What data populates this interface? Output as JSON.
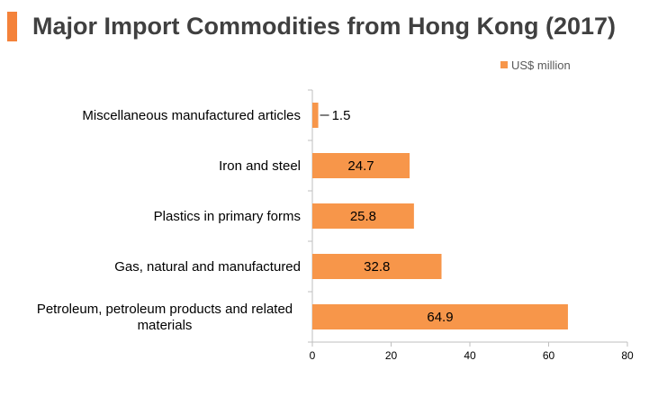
{
  "chart_data": {
    "type": "bar",
    "orientation": "horizontal",
    "title": "Major Import Commodities from Hong Kong (2017)",
    "categories": [
      "Miscellaneous manufactured articles",
      "Iron and steel",
      "Plastics in primary forms",
      "Gas, natural and manufactured",
      "Petroleum, petroleum products and related materials"
    ],
    "series": [
      {
        "name": "US$ million",
        "values": [
          1.5,
          24.7,
          25.8,
          32.8,
          64.9
        ],
        "color": "#f7964a"
      }
    ],
    "data_labels": [
      "1.5",
      "24.7",
      "25.8",
      "32.8",
      "64.9"
    ],
    "xlim": [
      0,
      80
    ],
    "xticks": [
      0,
      20,
      40,
      60,
      80
    ],
    "xlabel": "",
    "ylabel": "",
    "grid": false,
    "legend_position": "top-right"
  },
  "colors": {
    "accent": "#f4823a",
    "bar": "#f7964a",
    "title": "#404040",
    "axis": "#bfbfbf"
  }
}
